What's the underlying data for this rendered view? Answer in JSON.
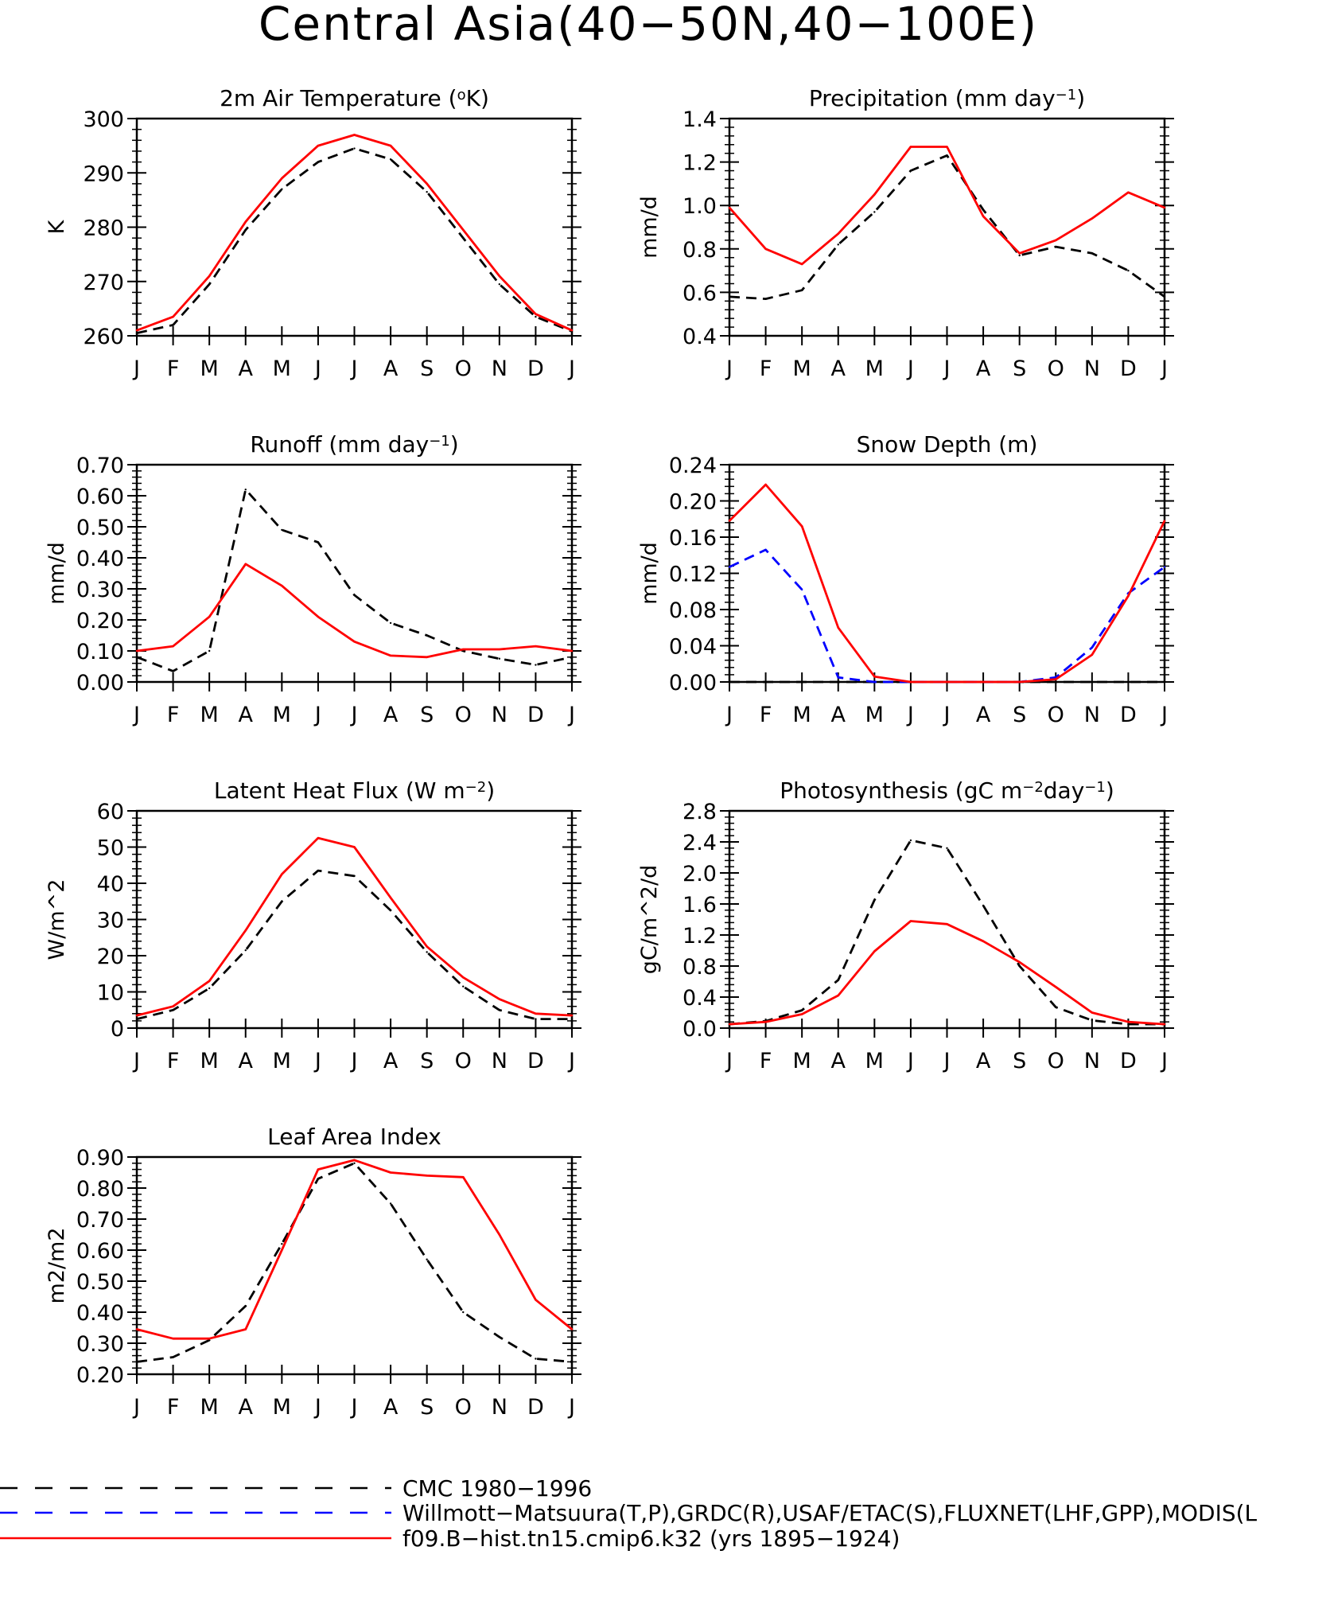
{
  "figure": {
    "title": "Central Asia(40−50N,40−100E)"
  },
  "colors": {
    "cmc": "#000000",
    "obs": "#0000ff",
    "model": "#ff0000"
  },
  "legend": [
    {
      "label": "CMC 1980−1996",
      "color": "#000000",
      "style": "dashed"
    },
    {
      "label": "Willmott−Matsuura(T,P),GRDC(R),USAF/ETAC(S),FLUXNET(LHF,GPP),MODIS(L",
      "color": "#0000ff",
      "style": "dashed"
    },
    {
      "label": "f09.B−hist.tn15.cmip6.k32 (yrs 1895−1924)",
      "color": "#ff0000",
      "style": "solid"
    }
  ],
  "chart_data": [
    {
      "type": "line",
      "title_parts": [
        "2m Air Temperature (",
        "o",
        "K)"
      ],
      "title_fmt": [
        "n",
        "sup",
        "n"
      ],
      "ylabel": "K",
      "ylim": [
        260,
        300
      ],
      "yticks": [
        260,
        270,
        280,
        290,
        300
      ],
      "ytick_labels": [
        "260",
        "270",
        "280",
        "290",
        "300"
      ],
      "categories": [
        "J",
        "F",
        "M",
        "A",
        "M",
        "J",
        "J",
        "A",
        "S",
        "O",
        "N",
        "D",
        "J"
      ],
      "series": [
        {
          "key": "cmc",
          "style": "dashed",
          "values": [
            260.5,
            262.0,
            269.5,
            279.5,
            287.0,
            292.0,
            294.5,
            292.5,
            286.5,
            278.0,
            269.5,
            263.5,
            260.8
          ]
        },
        {
          "key": "model",
          "style": "solid",
          "values": [
            261.0,
            263.5,
            271.0,
            281.0,
            289.0,
            295.0,
            297.0,
            295.0,
            288.0,
            279.5,
            271.0,
            264.0,
            261.0
          ]
        }
      ]
    },
    {
      "type": "line",
      "title_parts": [
        "Precipitation (mm day",
        "−1",
        ")"
      ],
      "title_fmt": [
        "n",
        "sup",
        "n"
      ],
      "ylabel": "mm/d",
      "ylim": [
        0.4,
        1.4
      ],
      "yticks": [
        0.4,
        0.6,
        0.8,
        1.0,
        1.2,
        1.4
      ],
      "ytick_labels": [
        "0.4",
        "0.6",
        "0.8",
        "1.0",
        "1.2",
        "1.4"
      ],
      "categories": [
        "J",
        "F",
        "M",
        "A",
        "M",
        "J",
        "J",
        "A",
        "S",
        "O",
        "N",
        "D",
        "J"
      ],
      "series": [
        {
          "key": "cmc",
          "style": "dashed",
          "values": [
            0.58,
            0.57,
            0.61,
            0.82,
            0.97,
            1.16,
            1.23,
            0.98,
            0.77,
            0.81,
            0.78,
            0.7,
            0.58
          ]
        },
        {
          "key": "model",
          "style": "solid",
          "values": [
            0.99,
            0.8,
            0.73,
            0.87,
            1.05,
            1.27,
            1.27,
            0.95,
            0.78,
            0.84,
            0.94,
            1.06,
            0.99
          ]
        }
      ]
    },
    {
      "type": "line",
      "title_parts": [
        "Runoff (mm day",
        "−1",
        ")"
      ],
      "title_fmt": [
        "n",
        "sup",
        "n"
      ],
      "ylabel": "mm/d",
      "ylim": [
        0.0,
        0.7
      ],
      "yticks": [
        0.0,
        0.1,
        0.2,
        0.3,
        0.4,
        0.5,
        0.6,
        0.7
      ],
      "ytick_labels": [
        "0.00",
        "0.10",
        "0.20",
        "0.30",
        "0.40",
        "0.50",
        "0.60",
        "0.70"
      ],
      "categories": [
        "J",
        "F",
        "M",
        "A",
        "M",
        "J",
        "J",
        "A",
        "S",
        "O",
        "N",
        "D",
        "J"
      ],
      "series": [
        {
          "key": "cmc",
          "style": "dashed",
          "values": [
            0.08,
            0.035,
            0.1,
            0.62,
            0.49,
            0.45,
            0.28,
            0.19,
            0.15,
            0.1,
            0.075,
            0.055,
            0.08
          ]
        },
        {
          "key": "model",
          "style": "solid",
          "values": [
            0.1,
            0.115,
            0.21,
            0.38,
            0.31,
            0.21,
            0.13,
            0.085,
            0.08,
            0.105,
            0.105,
            0.115,
            0.1
          ]
        }
      ]
    },
    {
      "type": "line",
      "title_parts": [
        "Snow Depth (m)"
      ],
      "title_fmt": [
        "n"
      ],
      "ylabel": "mm/d",
      "ylim": [
        0.0,
        0.24
      ],
      "yticks": [
        0.0,
        0.04,
        0.08,
        0.12,
        0.16,
        0.2,
        0.24
      ],
      "ytick_labels": [
        "0.00",
        "0.04",
        "0.08",
        "0.12",
        "0.16",
        "0.20",
        "0.24"
      ],
      "categories": [
        "J",
        "F",
        "M",
        "A",
        "M",
        "J",
        "J",
        "A",
        "S",
        "O",
        "N",
        "D",
        "J"
      ],
      "series": [
        {
          "key": "cmc",
          "style": "dashed",
          "values": [
            0.0,
            0.0,
            0.0,
            0.0,
            0.0,
            0.0,
            0.0,
            0.0,
            0.0,
            0.0,
            0.0,
            0.0,
            0.0
          ]
        },
        {
          "key": "obs",
          "style": "dashed",
          "values": [
            0.127,
            0.146,
            0.102,
            0.005,
            0.0,
            0.0,
            0.0,
            0.0,
            0.0,
            0.005,
            0.038,
            0.098,
            0.127
          ]
        },
        {
          "key": "model",
          "style": "solid",
          "values": [
            0.178,
            0.218,
            0.172,
            0.06,
            0.006,
            0.0,
            0.0,
            0.0,
            0.0,
            0.003,
            0.03,
            0.095,
            0.178
          ]
        }
      ]
    },
    {
      "type": "line",
      "title_parts": [
        "Latent Heat Flux (W m",
        "−2",
        ")"
      ],
      "title_fmt": [
        "n",
        "sup",
        "n"
      ],
      "ylabel": "W/m^2",
      "ylim": [
        0,
        60
      ],
      "yticks": [
        0,
        10,
        20,
        30,
        40,
        50,
        60
      ],
      "ytick_labels": [
        "0",
        "10",
        "20",
        "30",
        "40",
        "50",
        "60"
      ],
      "categories": [
        "J",
        "F",
        "M",
        "A",
        "M",
        "J",
        "J",
        "A",
        "S",
        "O",
        "N",
        "D",
        "J"
      ],
      "series": [
        {
          "key": "cmc",
          "style": "dashed",
          "values": [
            2.5,
            5.0,
            11.0,
            21.5,
            35.0,
            43.5,
            42.0,
            32.5,
            21.0,
            11.5,
            5.0,
            2.5,
            2.5
          ]
        },
        {
          "key": "model",
          "style": "solid",
          "values": [
            3.5,
            6.0,
            13.0,
            27.0,
            42.5,
            52.5,
            50.0,
            36.0,
            22.5,
            14.0,
            8.0,
            4.0,
            3.5
          ]
        }
      ]
    },
    {
      "type": "line",
      "title_parts": [
        "Photosynthesis (gC m",
        "−2",
        "day",
        "−1",
        ")"
      ],
      "title_fmt": [
        "n",
        "sup",
        "n",
        "sup",
        "n"
      ],
      "ylabel": "gC/m^2/d",
      "ylim": [
        0.0,
        2.8
      ],
      "yticks": [
        0.0,
        0.4,
        0.8,
        1.2,
        1.6,
        2.0,
        2.4,
        2.8
      ],
      "ytick_labels": [
        "0.0",
        "0.4",
        "0.8",
        "1.2",
        "1.6",
        "2.0",
        "2.4",
        "2.8"
      ],
      "categories": [
        "J",
        "F",
        "M",
        "A",
        "M",
        "J",
        "J",
        "A",
        "S",
        "O",
        "N",
        "D",
        "J"
      ],
      "series": [
        {
          "key": "cmc",
          "style": "dashed",
          "values": [
            0.05,
            0.09,
            0.23,
            0.62,
            1.65,
            2.42,
            2.32,
            1.58,
            0.8,
            0.27,
            0.1,
            0.05,
            0.05
          ]
        },
        {
          "key": "model",
          "style": "solid",
          "values": [
            0.05,
            0.08,
            0.18,
            0.42,
            0.99,
            1.38,
            1.34,
            1.12,
            0.85,
            0.53,
            0.2,
            0.08,
            0.05
          ]
        }
      ]
    },
    {
      "type": "line",
      "title_parts": [
        "Leaf Area Index"
      ],
      "title_fmt": [
        "n"
      ],
      "ylabel": "m2/m2",
      "ylim": [
        0.2,
        0.9
      ],
      "yticks": [
        0.2,
        0.3,
        0.4,
        0.5,
        0.6,
        0.7,
        0.8,
        0.9
      ],
      "ytick_labels": [
        "0.20",
        "0.30",
        "0.40",
        "0.50",
        "0.60",
        "0.70",
        "0.80",
        "0.90"
      ],
      "categories": [
        "J",
        "F",
        "M",
        "A",
        "M",
        "J",
        "J",
        "A",
        "S",
        "O",
        "N",
        "D",
        "J"
      ],
      "series": [
        {
          "key": "cmc",
          "style": "dashed",
          "values": [
            0.24,
            0.255,
            0.31,
            0.42,
            0.62,
            0.83,
            0.88,
            0.75,
            0.57,
            0.4,
            0.32,
            0.25,
            0.24
          ]
        },
        {
          "key": "model",
          "style": "solid",
          "values": [
            0.345,
            0.315,
            0.315,
            0.345,
            0.6,
            0.86,
            0.89,
            0.85,
            0.84,
            0.835,
            0.65,
            0.44,
            0.345
          ]
        }
      ]
    }
  ]
}
